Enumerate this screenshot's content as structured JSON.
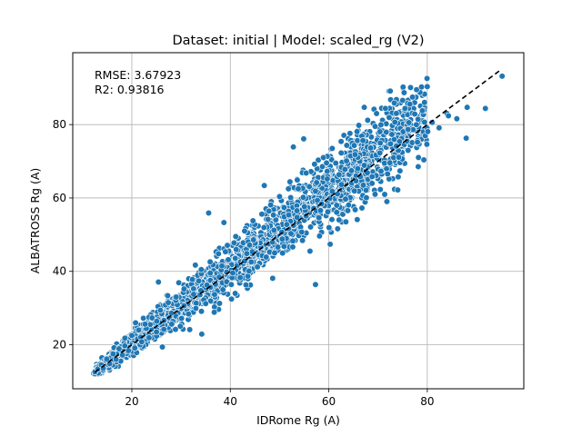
{
  "chart_data": {
    "type": "scatter",
    "title": "Dataset: initial | Model: scaled_rg (V2)",
    "xlabel": "IDRome Rg (A)",
    "ylabel": "ALBATROSS Rg (A)",
    "xlim": [
      8.0,
      99.6
    ],
    "ylim": [
      8.0,
      99.6
    ],
    "xticks": [
      20,
      40,
      60,
      80
    ],
    "yticks": [
      20,
      40,
      60,
      80
    ],
    "grid": true,
    "annotations": [
      "RMSE: 3.67923",
      "R2: 0.93816"
    ],
    "marker_color": "#1f77b4",
    "identity_line": {
      "x": [
        12.5,
        95.0
      ],
      "y": [
        12.5,
        95.0
      ],
      "style": "dashed",
      "color": "#000000"
    },
    "cloud_summary": {
      "x_range": [
        12,
        95
      ],
      "center_line": "y ≈ x",
      "spread_sd_approx": 3.68
    },
    "points": [
      [
        12.5,
        12.6
      ],
      [
        13.1,
        13.4
      ],
      [
        13.8,
        14.5
      ],
      [
        14.2,
        13.6
      ],
      [
        14.9,
        16.1
      ],
      [
        15.5,
        14.8
      ],
      [
        16.2,
        17.5
      ],
      [
        16.8,
        16.0
      ],
      [
        17.4,
        18.9
      ],
      [
        18.1,
        17.2
      ],
      [
        18.6,
        21.8
      ],
      [
        19.3,
        18.4
      ],
      [
        20.0,
        22.5
      ],
      [
        20.6,
        19.1
      ],
      [
        21.4,
        24.0
      ],
      [
        22.0,
        20.8
      ],
      [
        22.7,
        25.6
      ],
      [
        23.5,
        21.9
      ],
      [
        24.1,
        27.3
      ],
      [
        25.0,
        23.5
      ],
      [
        25.8,
        29.4
      ],
      [
        26.5,
        24.2
      ],
      [
        27.4,
        31.5
      ],
      [
        28.1,
        25.6
      ],
      [
        29.0,
        33.0
      ],
      [
        29.8,
        27.1
      ],
      [
        30.6,
        35.2
      ],
      [
        31.5,
        28.4
      ],
      [
        32.3,
        37.8
      ],
      [
        33.0,
        29.9
      ],
      [
        34.1,
        40.5
      ],
      [
        35.0,
        31.2
      ],
      [
        35.9,
        42.6
      ],
      [
        36.8,
        33.7
      ],
      [
        37.6,
        44.8
      ],
      [
        38.5,
        35.0
      ],
      [
        39.4,
        47.1
      ],
      [
        40.2,
        36.4
      ],
      [
        41.1,
        49.5
      ],
      [
        42.0,
        38.3
      ],
      [
        42.9,
        51.0
      ],
      [
        43.8,
        40.1
      ],
      [
        44.6,
        53.8
      ],
      [
        45.5,
        41.2
      ],
      [
        46.4,
        55.6
      ],
      [
        47.3,
        43.9
      ],
      [
        48.2,
        58.1
      ],
      [
        49.0,
        45.0
      ],
      [
        50.0,
        60.4
      ],
      [
        50.9,
        46.8
      ],
      [
        51.8,
        62.5
      ],
      [
        52.7,
        48.3
      ],
      [
        53.6,
        64.9
      ],
      [
        54.5,
        50.7
      ],
      [
        55.4,
        66.8
      ],
      [
        56.3,
        52.1
      ],
      [
        57.1,
        69.2
      ],
      [
        58.0,
        54.6
      ],
      [
        58.9,
        71.0
      ],
      [
        59.8,
        56.2
      ],
      [
        60.7,
        73.5
      ],
      [
        61.6,
        58.0
      ],
      [
        62.5,
        75.4
      ],
      [
        63.4,
        59.7
      ],
      [
        64.3,
        77.6
      ],
      [
        65.2,
        61.9
      ],
      [
        66.1,
        79.8
      ],
      [
        67.0,
        63.5
      ],
      [
        67.9,
        81.2
      ],
      [
        68.8,
        65.8
      ],
      [
        69.7,
        83.0
      ],
      [
        70.6,
        67.3
      ],
      [
        71.5,
        84.4
      ],
      [
        72.4,
        69.6
      ],
      [
        73.3,
        85.9
      ],
      [
        74.2,
        71.1
      ],
      [
        75.0,
        86.6
      ],
      [
        76.1,
        73.0
      ],
      [
        77.0,
        87.5
      ],
      [
        78.0,
        75.2
      ],
      [
        79.0,
        83.8
      ],
      [
        80.1,
        78.1
      ],
      [
        81.0,
        80.6
      ],
      [
        82.4,
        79.1
      ],
      [
        84.0,
        83.0
      ],
      [
        86.0,
        81.6
      ],
      [
        88.1,
        84.7
      ],
      [
        91.8,
        84.4
      ],
      [
        95.2,
        93.2
      ],
      [
        44.7,
        48.6
      ],
      [
        54.9,
        76.1
      ],
      [
        57.3,
        36.4
      ],
      [
        61.8,
        51.6
      ],
      [
        74.0,
        62.2
      ],
      [
        76.6,
        90.1
      ],
      [
        84.3,
        82.4
      ],
      [
        87.9,
        76.3
      ],
      [
        30.1,
        27.2
      ],
      [
        26.2,
        19.4
      ],
      [
        34.2,
        22.9
      ],
      [
        25.4,
        37.1
      ],
      [
        35.6,
        55.9
      ],
      [
        41.0,
        34.0
      ],
      [
        46.9,
        63.4
      ],
      [
        52.8,
        73.9
      ],
      [
        63.6,
        70.1
      ],
      [
        69.4,
        61.0
      ],
      [
        79.3,
        70.4
      ],
      [
        67.2,
        84.7
      ],
      [
        48.6,
        38.1
      ],
      [
        38.7,
        53.3
      ],
      [
        32.9,
        41.7
      ]
    ]
  }
}
